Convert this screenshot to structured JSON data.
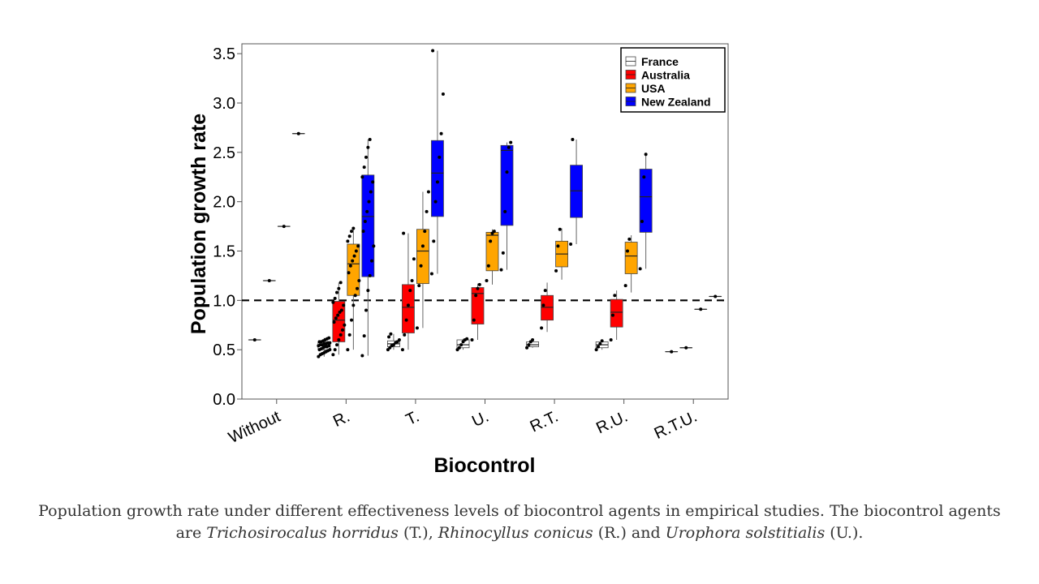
{
  "chart_data": {
    "type": "box",
    "xlabel": "Biocontrol",
    "ylabel": "Population growth rate",
    "ylim": [
      0,
      3.6
    ],
    "yticks": [
      "0.0",
      "0.5",
      "1.0",
      "1.5",
      "2.0",
      "2.5",
      "3.0",
      "3.5"
    ],
    "categories": [
      "Without",
      "R.",
      "T.",
      "U.",
      "R.T.",
      "R.U.",
      "R.T.U."
    ],
    "reference_line": 1.0,
    "legend": {
      "position": "top-right"
    },
    "series": [
      {
        "name": "France",
        "color": "#ffffff",
        "boxes": [
          {
            "category": "Without",
            "q1": 0.6,
            "median": 0.6,
            "q3": 0.6,
            "low": 0.6,
            "high": 0.6,
            "points": [
              0.6
            ]
          },
          {
            "category": "R.",
            "q1": 0.5,
            "median": 0.54,
            "q3": 0.58,
            "low": 0.43,
            "high": 0.62,
            "points": [
              0.43,
              0.45,
              0.46,
              0.47,
              0.48,
              0.49,
              0.5,
              0.5,
              0.51,
              0.52,
              0.53,
              0.53,
              0.54,
              0.54,
              0.55,
              0.55,
              0.56,
              0.56,
              0.57,
              0.57,
              0.58,
              0.58,
              0.59,
              0.6,
              0.61,
              0.62
            ]
          },
          {
            "category": "T.",
            "q1": 0.53,
            "median": 0.56,
            "q3": 0.59,
            "low": 0.5,
            "high": 0.66,
            "points": [
              0.5,
              0.52,
              0.54,
              0.55,
              0.57,
              0.58,
              0.6,
              0.63,
              0.66
            ]
          },
          {
            "category": "U.",
            "q1": 0.52,
            "median": 0.55,
            "q3": 0.6,
            "low": 0.5,
            "high": 0.61,
            "points": [
              0.5,
              0.52,
              0.55,
              0.58,
              0.6,
              0.61
            ]
          },
          {
            "category": "R.T.",
            "q1": 0.53,
            "median": 0.55,
            "q3": 0.58,
            "low": 0.52,
            "high": 0.6,
            "points": [
              0.52,
              0.55,
              0.58,
              0.6
            ]
          },
          {
            "category": "R.U.",
            "q1": 0.52,
            "median": 0.55,
            "q3": 0.58,
            "low": 0.5,
            "high": 0.59,
            "points": [
              0.5,
              0.53,
              0.56,
              0.59
            ]
          },
          {
            "category": "R.T.U.",
            "q1": 0.48,
            "median": 0.48,
            "q3": 0.48,
            "low": 0.48,
            "high": 0.48,
            "points": [
              0.48
            ]
          }
        ]
      },
      {
        "name": "Australia",
        "color": "#ff0000",
        "boxes": [
          {
            "category": "Without",
            "q1": 1.2,
            "median": 1.2,
            "q3": 1.2,
            "low": 1.2,
            "high": 1.2,
            "points": [
              1.2
            ]
          },
          {
            "category": "R.",
            "q1": 0.58,
            "median": 0.8,
            "q3": 0.99,
            "low": 0.45,
            "high": 1.18,
            "points": [
              0.45,
              0.5,
              0.55,
              0.6,
              0.65,
              0.7,
              0.75,
              0.78,
              0.82,
              0.85,
              0.88,
              0.9,
              0.95,
              0.98,
              1.02,
              1.08,
              1.12,
              1.18
            ]
          },
          {
            "category": "T.",
            "q1": 0.67,
            "median": 0.93,
            "q3": 1.16,
            "low": 0.5,
            "high": 1.68,
            "points": [
              0.5,
              0.65,
              0.8,
              0.95,
              1.1,
              1.2,
              1.42,
              1.68
            ]
          },
          {
            "category": "U.",
            "q1": 0.76,
            "median": 1.07,
            "q3": 1.13,
            "low": 0.6,
            "high": 1.17,
            "points": [
              0.6,
              0.8,
              1.05,
              1.12,
              1.16
            ]
          },
          {
            "category": "R.T.",
            "q1": 0.8,
            "median": 0.93,
            "q3": 1.05,
            "low": 0.68,
            "high": 1.18,
            "points": [
              0.72,
              0.95,
              1.1
            ]
          },
          {
            "category": "R.U.",
            "q1": 0.73,
            "median": 0.88,
            "q3": 1.01,
            "low": 0.6,
            "high": 1.1,
            "points": [
              0.6,
              0.85,
              1.05
            ]
          },
          {
            "category": "R.T.U.",
            "q1": 0.52,
            "median": 0.52,
            "q3": 0.52,
            "low": 0.52,
            "high": 0.52,
            "points": [
              0.52
            ]
          }
        ]
      },
      {
        "name": "USA",
        "color": "#ffa500",
        "boxes": [
          {
            "category": "Without",
            "q1": 1.75,
            "median": 1.75,
            "q3": 1.75,
            "low": 1.75,
            "high": 1.75,
            "points": [
              1.75
            ]
          },
          {
            "category": "R.",
            "q1": 1.05,
            "median": 1.37,
            "q3": 1.57,
            "low": 0.5,
            "high": 1.73,
            "points": [
              0.5,
              0.65,
              0.8,
              0.95,
              1.05,
              1.12,
              1.2,
              1.28,
              1.35,
              1.4,
              1.45,
              1.5,
              1.55,
              1.6,
              1.65,
              1.7,
              1.73
            ]
          },
          {
            "category": "T.",
            "q1": 1.17,
            "median": 1.5,
            "q3": 1.72,
            "low": 0.72,
            "high": 2.1,
            "points": [
              0.72,
              1.15,
              1.35,
              1.55,
              1.7,
              1.9,
              2.1
            ]
          },
          {
            "category": "U.",
            "q1": 1.3,
            "median": 1.66,
            "q3": 1.69,
            "low": 1.16,
            "high": 1.72,
            "points": [
              1.2,
              1.35,
              1.6,
              1.68,
              1.7
            ]
          },
          {
            "category": "R.T.",
            "q1": 1.34,
            "median": 1.47,
            "q3": 1.6,
            "low": 1.21,
            "high": 1.73,
            "points": [
              1.3,
              1.55,
              1.72
            ]
          },
          {
            "category": "R.U.",
            "q1": 1.27,
            "median": 1.45,
            "q3": 1.59,
            "low": 1.08,
            "high": 1.66,
            "points": [
              1.15,
              1.5,
              1.62
            ]
          },
          {
            "category": "R.T.U.",
            "q1": 0.91,
            "median": 0.91,
            "q3": 0.91,
            "low": 0.91,
            "high": 0.91,
            "points": [
              0.91
            ]
          }
        ]
      },
      {
        "name": "New Zealand",
        "color": "#0000ff",
        "boxes": [
          {
            "category": "Without",
            "q1": 2.69,
            "median": 2.69,
            "q3": 2.69,
            "low": 2.69,
            "high": 2.69,
            "points": [
              2.69
            ]
          },
          {
            "category": "R.",
            "q1": 1.24,
            "median": 1.85,
            "q3": 2.27,
            "low": 0.44,
            "high": 2.63,
            "points": [
              0.44,
              0.64,
              0.9,
              1.1,
              1.25,
              1.4,
              1.55,
              1.7,
              1.8,
              1.9,
              2.0,
              2.1,
              2.2,
              2.25,
              2.35,
              2.45,
              2.55,
              2.63
            ]
          },
          {
            "category": "T.",
            "q1": 1.85,
            "median": 2.29,
            "q3": 2.62,
            "low": 1.27,
            "high": 3.53,
            "points": [
              1.27,
              1.6,
              2.0,
              2.2,
              2.45,
              2.69,
              3.09,
              3.53
            ]
          },
          {
            "category": "U.",
            "q1": 1.76,
            "median": 2.52,
            "q3": 2.57,
            "low": 1.31,
            "high": 2.6,
            "points": [
              1.31,
              1.48,
              1.9,
              2.3,
              2.55,
              2.6
            ]
          },
          {
            "category": "R.T.",
            "q1": 1.84,
            "median": 2.11,
            "q3": 2.37,
            "low": 1.57,
            "high": 2.63,
            "points": [
              1.57,
              2.63
            ]
          },
          {
            "category": "R.U.",
            "q1": 1.69,
            "median": 2.05,
            "q3": 2.33,
            "low": 1.32,
            "high": 2.48,
            "points": [
              1.32,
              1.8,
              2.25,
              2.48
            ]
          },
          {
            "category": "R.T.U.",
            "q1": 1.04,
            "median": 1.04,
            "q3": 1.04,
            "low": 1.04,
            "high": 1.04,
            "points": [
              1.04
            ]
          }
        ]
      }
    ]
  },
  "caption": {
    "part1": "Population growth rate under different effectiveness levels of biocontrol agents in empirical studies. The biocontrol agents are ",
    "agent_t": "Trichosirocalus horridus",
    "abbr_t": " (T.), ",
    "agent_r": "Rhinocyllus conicus",
    "abbr_r": " (R.) and ",
    "agent_u": "Urophora solstitialis",
    "abbr_u": " (U.)."
  }
}
